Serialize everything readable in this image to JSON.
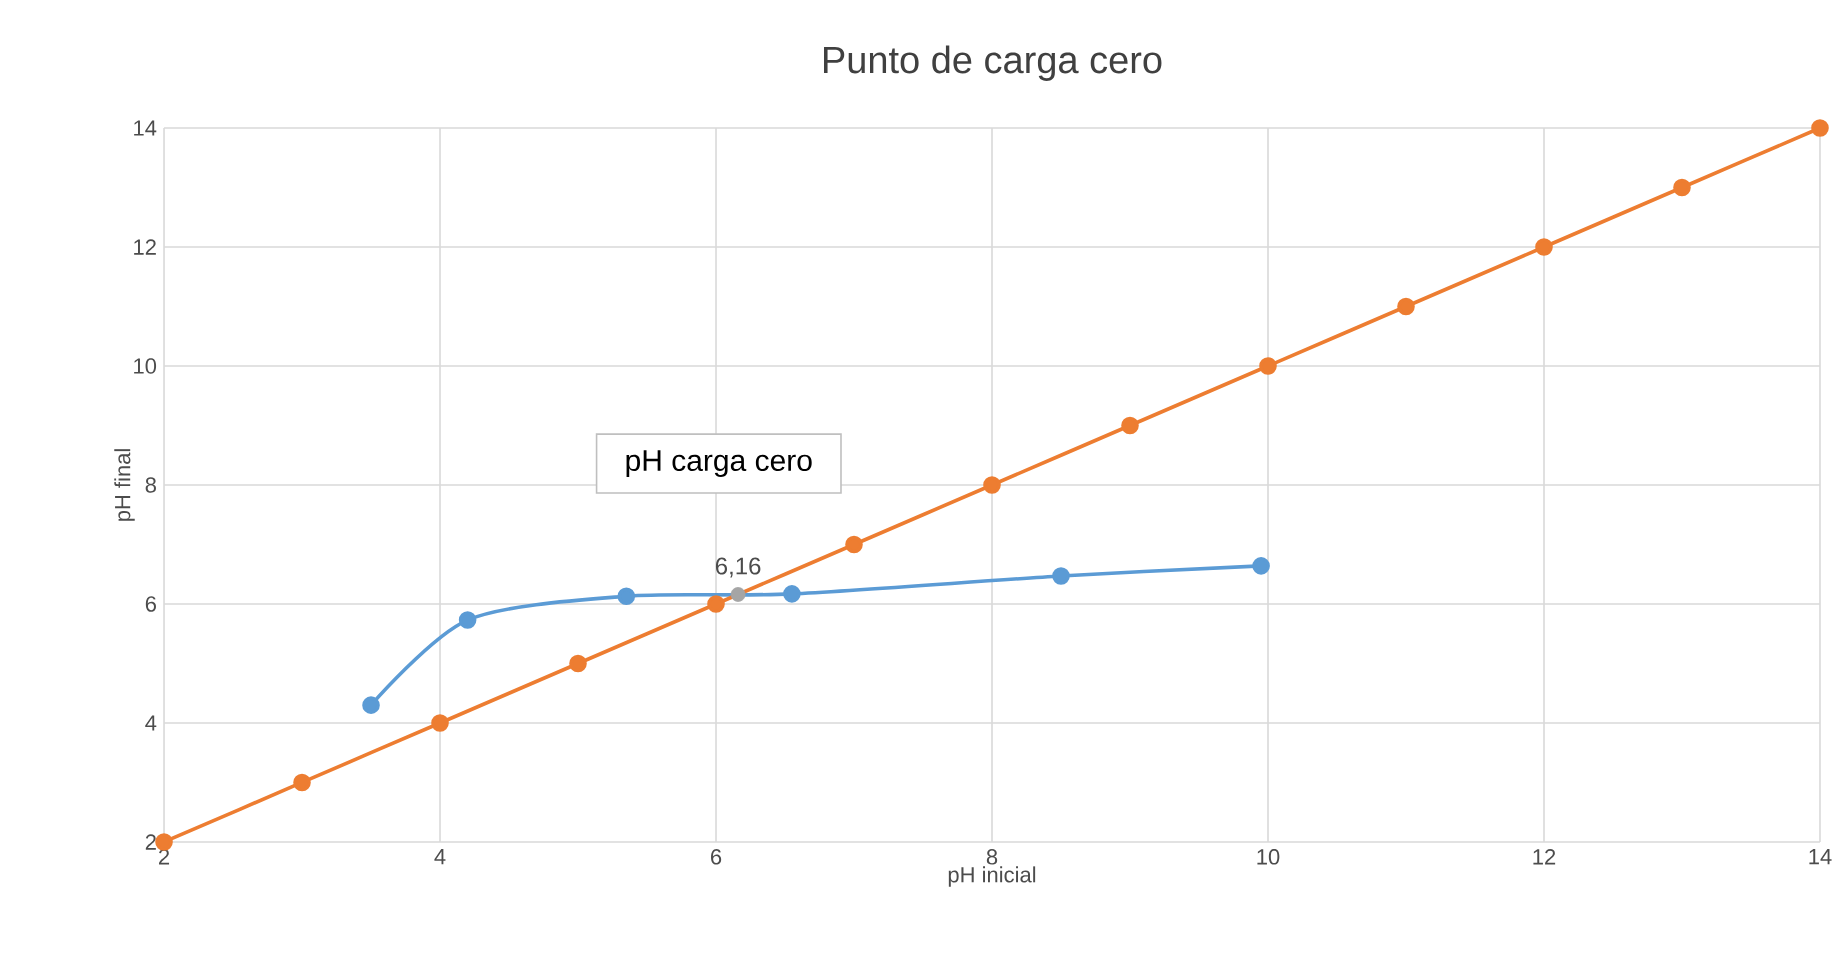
{
  "chart_data": {
    "type": "line",
    "title": "Punto de carga cero",
    "xlabel": "pH inicial",
    "ylabel": "pH final",
    "xlim": [
      2,
      14
    ],
    "ylim": [
      2,
      14
    ],
    "xticks": [
      2,
      4,
      6,
      8,
      10,
      12,
      14
    ],
    "yticks": [
      2,
      4,
      6,
      8,
      10,
      12,
      14
    ],
    "grid": true,
    "marker": "circle",
    "line_style": "solid",
    "series": [
      {
        "color": "#5b9bd5",
        "x": [
          3.5,
          4.2,
          5.35,
          6.55,
          8.5,
          9.95
        ],
        "values": [
          4.3,
          5.73,
          6.13,
          6.17,
          6.47,
          6.64
        ]
      },
      {
        "color": "#ed7d31",
        "x": [
          2,
          3,
          4,
          5,
          6,
          7,
          8,
          9,
          10,
          11,
          12,
          13,
          14
        ],
        "values": [
          2,
          3,
          4,
          5,
          6,
          7,
          8,
          9,
          10,
          11,
          12,
          13,
          14
        ]
      },
      {
        "type": "scatter",
        "color": "#a5a5a5",
        "x": [
          6.16
        ],
        "values": [
          6.16
        ]
      }
    ],
    "annotations": [
      "pH carga cero",
      {
        "text": "6,16",
        "x": 6.16,
        "y": 6.16
      }
    ]
  }
}
